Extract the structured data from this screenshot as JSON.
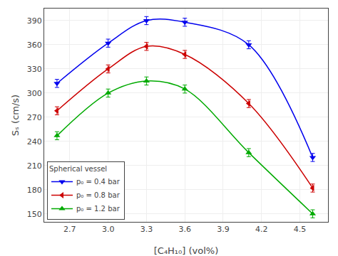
{
  "chart_data": {
    "type": "line",
    "xlabel": "[C₄H₁₀] (vol%)",
    "ylabel": "Sₛ (cm/s)",
    "xlim": [
      2.5,
      4.72
    ],
    "ylim": [
      140,
      405
    ],
    "xticks": [
      2.7,
      {
        "value": 3.0,
        "label": "3.0"
      },
      3.3,
      3.6,
      3.9,
      4.2,
      4.5
    ],
    "yticks": [
      150,
      180,
      210,
      240,
      270,
      300,
      330,
      360,
      390
    ],
    "grid": true,
    "legend": "lower left",
    "legend_title": "Spherical vessel",
    "series": [
      {
        "name": "p₀ = 0.4 bar",
        "color": "#0000ee",
        "marker": "triangle-down",
        "x": [
          2.6,
          3.0,
          3.3,
          3.6,
          4.1,
          4.6
        ],
        "values": [
          312,
          362,
          390,
          388,
          360,
          220
        ],
        "error": [
          5,
          5,
          5,
          5,
          5,
          5
        ]
      },
      {
        "name": "p₀ = 0.8 bar",
        "color": "#cc0000",
        "marker": "triangle-left",
        "x": [
          2.6,
          3.0,
          3.3,
          3.6,
          4.1,
          4.6
        ],
        "values": [
          278,
          330,
          358,
          348,
          287,
          182
        ],
        "error": [
          5,
          5,
          5,
          5,
          5,
          5
        ]
      },
      {
        "name": "p₀ = 1.2 bar",
        "color": "#00aa00",
        "marker": "triangle-up",
        "x": [
          2.6,
          3.0,
          3.3,
          3.6,
          4.1,
          4.6
        ],
        "values": [
          247,
          300,
          315,
          305,
          226,
          150
        ],
        "error": [
          5,
          5,
          5,
          5,
          5,
          5
        ]
      }
    ]
  }
}
